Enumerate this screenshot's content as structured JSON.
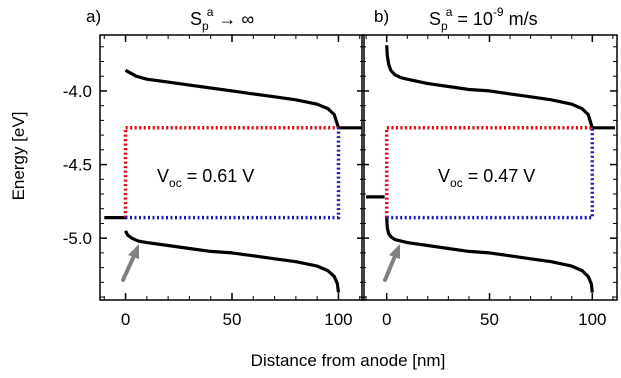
{
  "figure": {
    "ylabel": "Energy [eV]",
    "xlabel": "Distance from anode [nm]"
  },
  "panels": [
    {
      "letter": "a)",
      "heading_main": "S",
      "heading_sub": "p",
      "heading_sup": "a",
      "heading_rest": " → ∞",
      "voc_prefix": "V",
      "voc_sub": "oc",
      "voc_rest": " = 0.61 V"
    },
    {
      "letter": "b)",
      "heading_main": "S",
      "heading_sub": "p",
      "heading_sup": "a",
      "heading_rest": " = 10",
      "heading_exp": "-9",
      "heading_unit": " m/s",
      "voc_prefix": "V",
      "voc_sub": "oc",
      "voc_rest": " = 0.47 V"
    }
  ],
  "colors": {
    "band_edges": "#000000",
    "electron_quasi_fermi": "#e8000b",
    "hole_quasi_fermi": "#1c1cb4",
    "arrow": "#808080",
    "frame": "#000000"
  },
  "chart_data": [
    {
      "type": "line",
      "panel": "a",
      "xlim": [
        -12,
        112
      ],
      "ylim": [
        -5.42,
        -3.62
      ],
      "xticks": [
        0,
        50,
        100
      ],
      "yticks": [
        -4.0,
        -4.5,
        -5.0
      ],
      "ytick_labels": [
        "-4.0",
        "-4.5",
        "-5.0"
      ],
      "series": [
        {
          "role": "lumo",
          "style": "solid",
          "color": "#000000",
          "x": [
            0,
            5,
            10,
            20,
            30,
            40,
            50,
            60,
            70,
            80,
            90,
            95,
            98,
            100
          ],
          "y": [
            -3.86,
            -3.9,
            -3.92,
            -3.94,
            -3.96,
            -3.98,
            -4.0,
            -4.02,
            -4.04,
            -4.06,
            -4.09,
            -4.12,
            -4.16,
            -4.25
          ]
        },
        {
          "role": "homo",
          "style": "solid",
          "color": "#000000",
          "x": [
            0,
            1,
            3,
            6,
            10,
            20,
            30,
            40,
            50,
            60,
            70,
            80,
            90,
            95,
            98,
            99.5,
            100
          ],
          "y": [
            -4.95,
            -4.98,
            -5.0,
            -5.02,
            -5.03,
            -5.05,
            -5.07,
            -5.09,
            -5.1,
            -5.12,
            -5.14,
            -5.16,
            -5.19,
            -5.22,
            -5.26,
            -5.31,
            -5.37
          ]
        },
        {
          "role": "anode_level",
          "style": "solid",
          "color": "#000000",
          "x": [
            -10,
            0
          ],
          "y": [
            -4.86,
            -4.86
          ]
        },
        {
          "role": "cathode_level",
          "style": "solid",
          "color": "#000000",
          "x": [
            100,
            111
          ],
          "y": [
            -4.25,
            -4.25
          ]
        },
        {
          "role": "electron_qfl",
          "style": "dotted",
          "color": "#e8000b",
          "x": [
            0,
            0,
            100
          ],
          "y": [
            -4.86,
            -4.25,
            -4.25
          ]
        },
        {
          "role": "hole_qfl",
          "style": "dotted",
          "color": "#1c1cb4",
          "x": [
            0,
            100,
            100
          ],
          "y": [
            -4.86,
            -4.86,
            -4.25
          ]
        }
      ]
    },
    {
      "type": "line",
      "panel": "b",
      "xlim": [
        -12,
        112
      ],
      "ylim": [
        -5.42,
        -3.62
      ],
      "xticks": [
        0,
        50,
        100
      ],
      "series": [
        {
          "role": "lumo",
          "style": "solid",
          "color": "#000000",
          "x": [
            0,
            0.3,
            1,
            2,
            4,
            7,
            10,
            20,
            30,
            40,
            50,
            60,
            70,
            80,
            90,
            95,
            98,
            100
          ],
          "y": [
            -3.69,
            -3.76,
            -3.82,
            -3.86,
            -3.89,
            -3.91,
            -3.92,
            -3.95,
            -3.97,
            -3.99,
            -4.0,
            -4.02,
            -4.04,
            -4.06,
            -4.09,
            -4.12,
            -4.16,
            -4.25
          ]
        },
        {
          "role": "homo",
          "style": "solid",
          "color": "#000000",
          "x": [
            0,
            0.3,
            1,
            2,
            4,
            7,
            10,
            20,
            30,
            40,
            50,
            60,
            70,
            80,
            90,
            95,
            98,
            99.5,
            100
          ],
          "y": [
            -4.86,
            -4.93,
            -4.97,
            -4.99,
            -5.01,
            -5.02,
            -5.03,
            -5.05,
            -5.07,
            -5.09,
            -5.1,
            -5.12,
            -5.14,
            -5.16,
            -5.19,
            -5.22,
            -5.26,
            -5.31,
            -5.37
          ]
        },
        {
          "role": "anode_level",
          "style": "solid",
          "color": "#000000",
          "x": [
            -10,
            -1
          ],
          "y": [
            -4.72,
            -4.72
          ]
        },
        {
          "role": "cathode_level",
          "style": "solid",
          "color": "#000000",
          "x": [
            100,
            111
          ],
          "y": [
            -4.25,
            -4.25
          ]
        },
        {
          "role": "electron_qfl",
          "style": "dotted",
          "color": "#e8000b",
          "x": [
            0,
            0,
            100
          ],
          "y": [
            -4.86,
            -4.25,
            -4.25
          ]
        },
        {
          "role": "hole_qfl",
          "style": "dotted",
          "color": "#1c1cb4",
          "x": [
            0,
            100,
            100
          ],
          "y": [
            -4.86,
            -4.86,
            -4.25
          ]
        }
      ]
    }
  ]
}
